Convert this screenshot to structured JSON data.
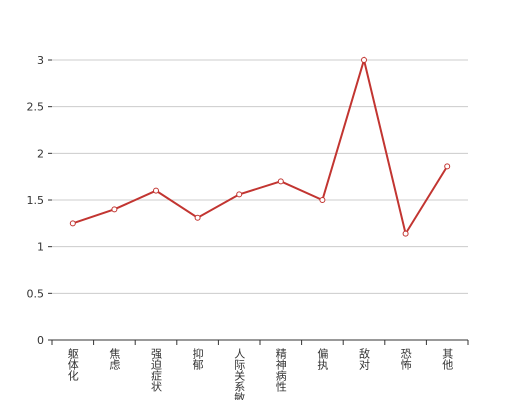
{
  "chart_data": {
    "type": "line",
    "categories": [
      "躯体化",
      "焦虑",
      "强迫症状",
      "抑郁",
      "人际关系敏感",
      "精神病性",
      "偏执",
      "敌对",
      "恐怖",
      "其他"
    ],
    "series": [
      {
        "name": "",
        "color": "#c23531",
        "values": [
          1.25,
          1.4,
          1.6,
          1.31,
          1.56,
          1.7,
          1.5,
          3.0,
          1.14,
          1.86
        ]
      }
    ],
    "ylim": [
      0,
      3
    ],
    "yticks": [
      0,
      0.5,
      1,
      1.5,
      2,
      2.5,
      3
    ],
    "grid": true
  }
}
